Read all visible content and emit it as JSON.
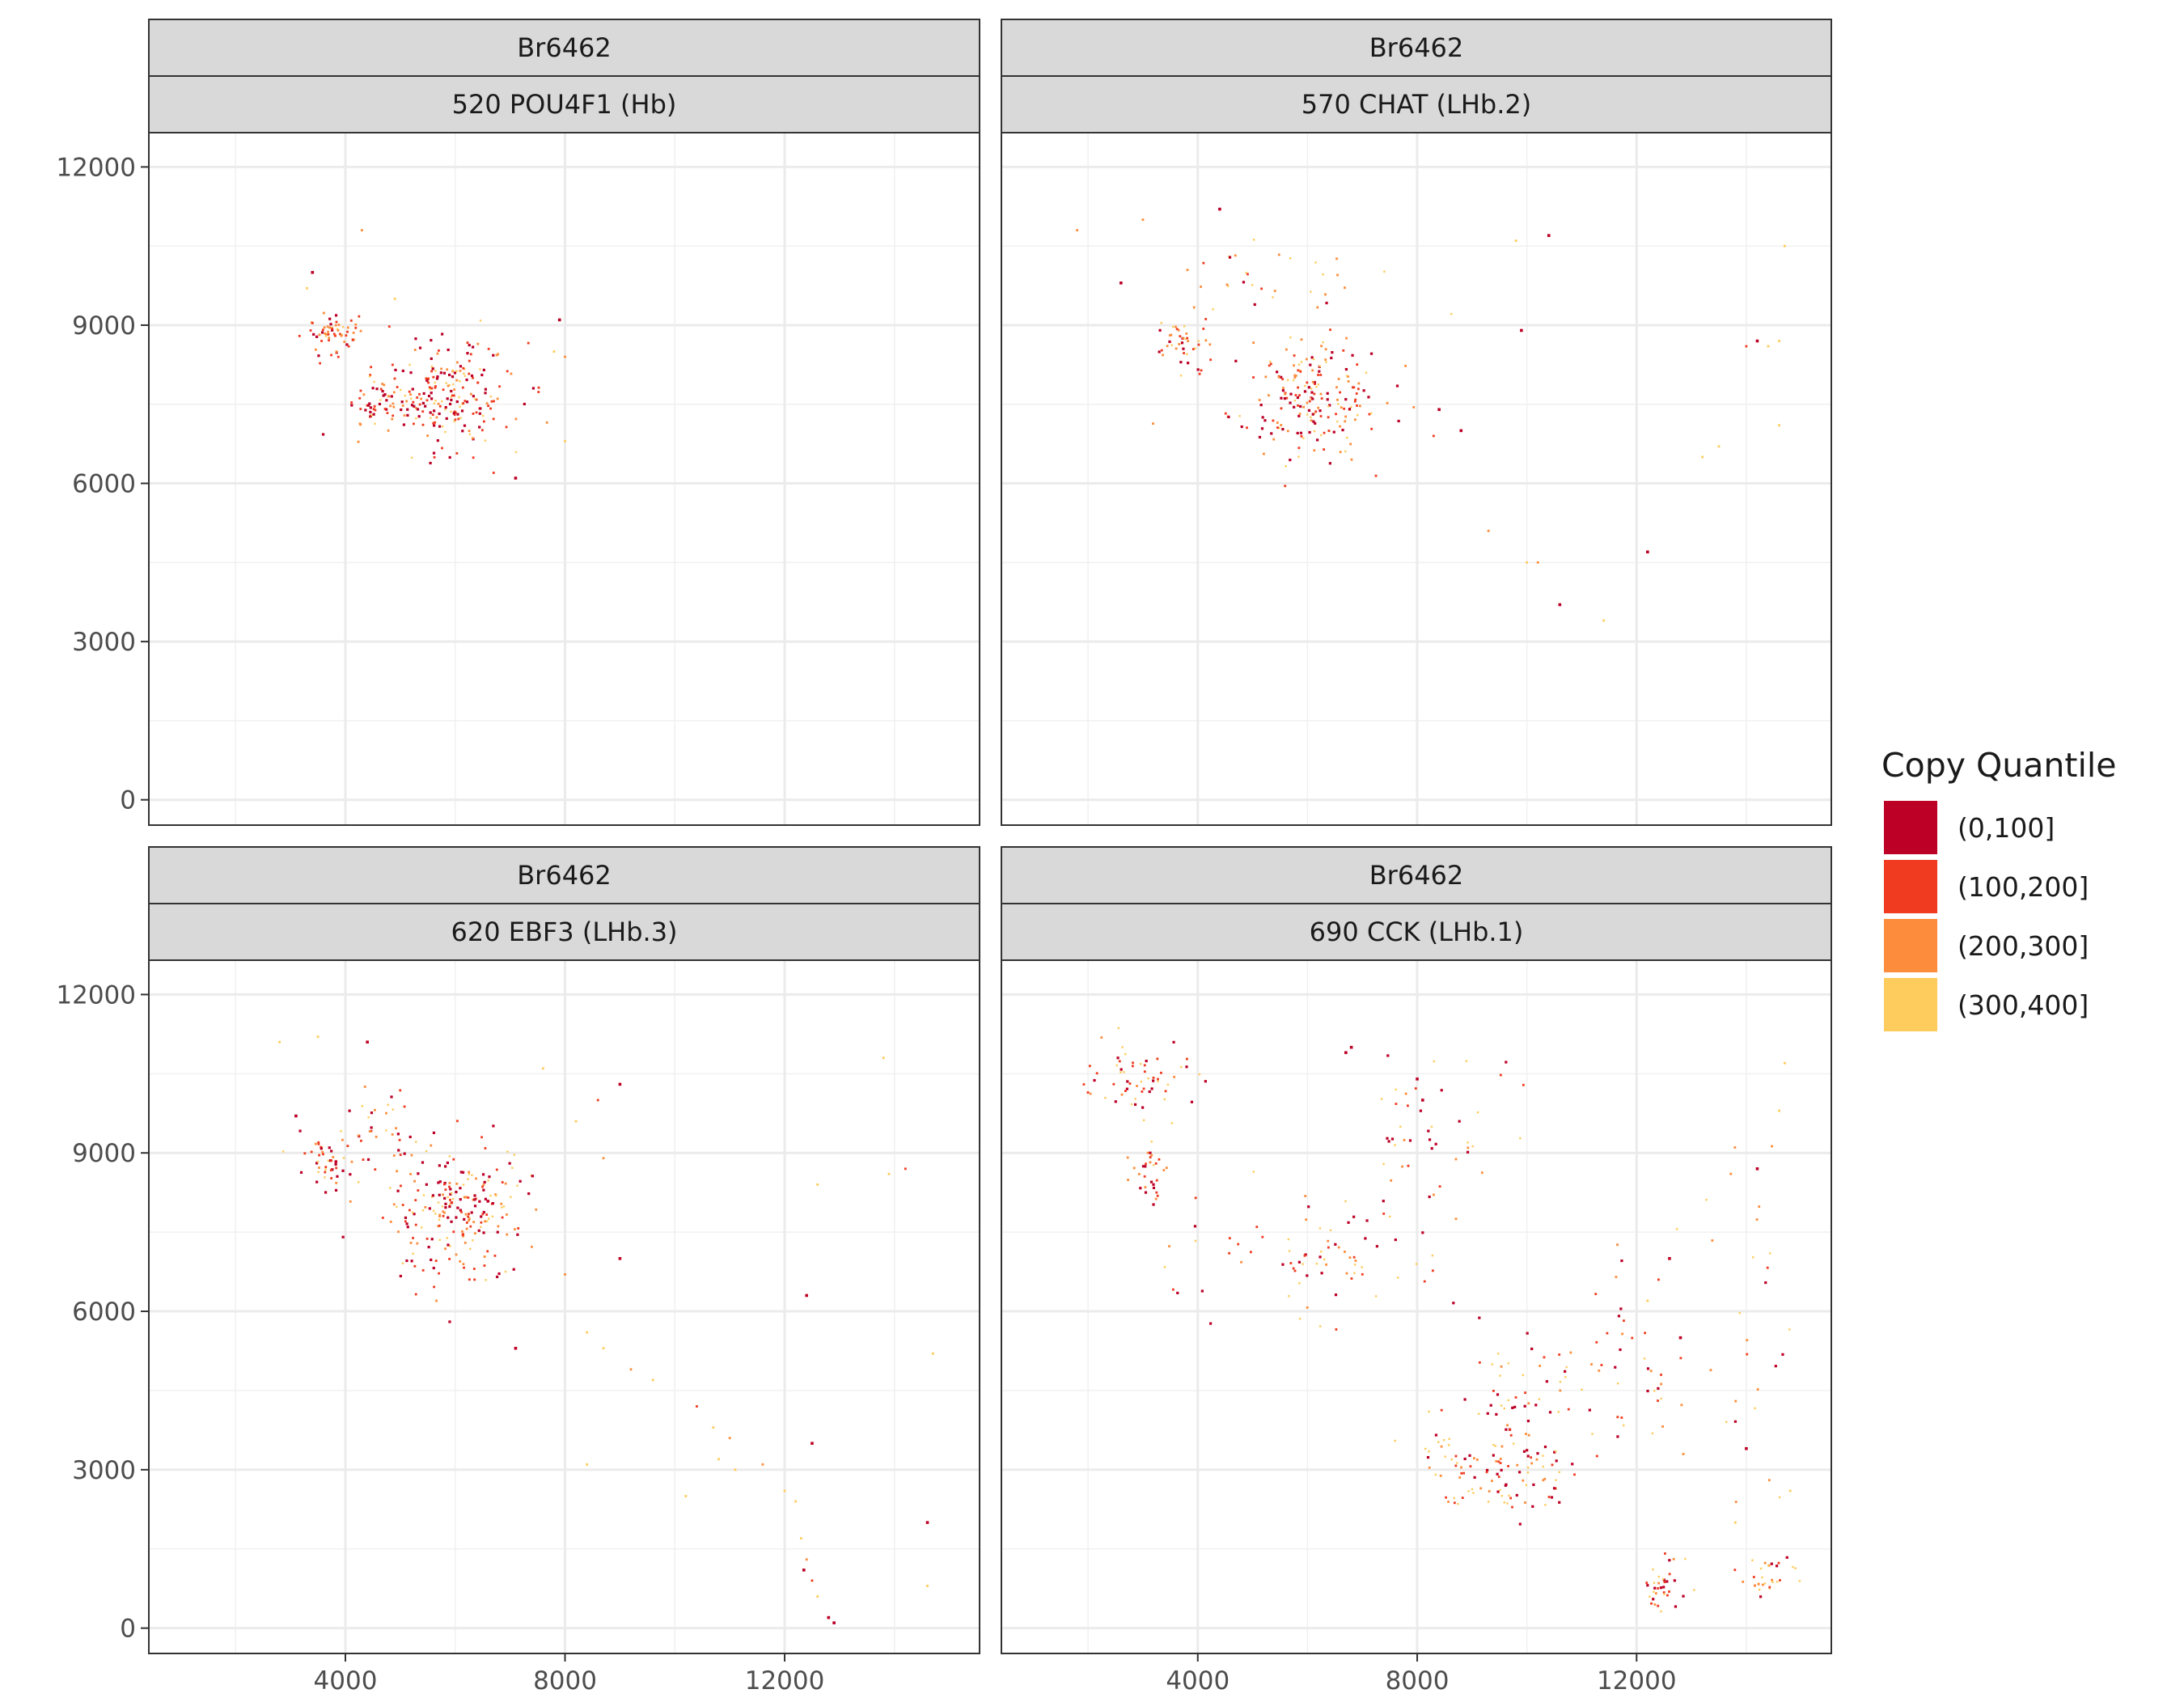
{
  "chart_data": {
    "type": "scatter",
    "xlim": [
      420,
      15550
    ],
    "ylim": [
      -480,
      12650
    ],
    "x_ticks": [
      "4000",
      "8000",
      "12000"
    ],
    "y_ticks": [
      "0",
      "3000",
      "6000",
      "9000",
      "12000"
    ],
    "major_grid_x": [
      4000,
      8000,
      12000
    ],
    "major_grid_y": [
      0,
      3000,
      6000,
      9000,
      12000
    ],
    "minor_grid_x": [
      2000,
      6000,
      10000,
      14000
    ],
    "minor_grid_y": [
      1500,
      4500,
      7500,
      10500
    ],
    "grid": true,
    "legend_position": "right",
    "legend": {
      "title": "Copy Quantile",
      "entries": [
        {
          "label": "(0,100]",
          "color": "#bd0026"
        },
        {
          "label": "(100,200]",
          "color": "#f03b20"
        },
        {
          "label": "(200,300]",
          "color": "#fd8d3c"
        },
        {
          "label": "(300,400]",
          "color": "#fecc5c"
        }
      ]
    },
    "panels": [
      {
        "sample": "Br6462",
        "cluster": "520 POU4F1 (Hb)",
        "clusters": [
          {
            "cx": 5800,
            "cy": 7700,
            "rx": 1300,
            "ry": 1000,
            "n": 230,
            "w": [
              3,
              3,
              2,
              2
            ]
          },
          {
            "cx": 3700,
            "cy": 8800,
            "rx": 500,
            "ry": 450,
            "n": 60,
            "w": [
              3,
              3,
              3,
              2
            ]
          },
          {
            "cx": 4500,
            "cy": 7500,
            "rx": 500,
            "ry": 500,
            "n": 40,
            "w": [
              3,
              3,
              2,
              1
            ]
          }
        ],
        "points": [
          [
            3300,
            9700,
            3
          ],
          [
            3400,
            10000,
            0
          ],
          [
            4300,
            10800,
            2
          ],
          [
            7900,
            9100,
            0
          ],
          [
            8000,
            8400,
            2
          ],
          [
            7800,
            8500,
            3
          ],
          [
            8000,
            6800,
            3
          ],
          [
            4900,
            9500,
            3
          ],
          [
            7100,
            6100,
            0
          ],
          [
            6700,
            6200,
            1
          ]
        ]
      },
      {
        "sample": "Br6462",
        "cluster": "570 CHAT (LHb.2)",
        "clusters": [
          {
            "cx": 6000,
            "cy": 7600,
            "rx": 1400,
            "ry": 1100,
            "n": 200,
            "w": [
              3,
              3,
              2,
              2
            ]
          },
          {
            "cx": 3700,
            "cy": 8700,
            "rx": 500,
            "ry": 450,
            "n": 40,
            "w": [
              2,
              3,
              3,
              2
            ]
          },
          {
            "cx": 5500,
            "cy": 9800,
            "rx": 3000,
            "ry": 800,
            "n": 35,
            "w": [
              1,
              1,
              2,
              4
            ]
          }
        ],
        "points": [
          [
            1800,
            10800,
            2
          ],
          [
            2600,
            9800,
            0
          ],
          [
            3000,
            11000,
            2
          ],
          [
            4400,
            11200,
            0
          ],
          [
            10400,
            10700,
            0
          ],
          [
            9800,
            10600,
            3
          ],
          [
            9900,
            8900,
            0
          ],
          [
            8400,
            7400,
            0
          ],
          [
            8800,
            7000,
            0
          ],
          [
            8300,
            6900,
            1
          ],
          [
            14200,
            8700,
            0
          ],
          [
            14400,
            8600,
            3
          ],
          [
            14000,
            8600,
            1
          ],
          [
            14600,
            8700,
            3
          ],
          [
            9300,
            5100,
            2
          ],
          [
            12200,
            4700,
            0
          ],
          [
            10000,
            4500,
            3
          ],
          [
            10200,
            4500,
            2
          ],
          [
            10600,
            3700,
            0
          ],
          [
            11400,
            3400,
            3
          ],
          [
            13500,
            6700,
            3
          ],
          [
            14600,
            7100,
            3
          ],
          [
            13200,
            6500,
            3
          ],
          [
            14700,
            10500,
            3
          ]
        ]
      },
      {
        "sample": "Br6462",
        "cluster": "620 EBF3 (LHb.3)",
        "clusters": [
          {
            "cx": 6000,
            "cy": 7900,
            "rx": 1300,
            "ry": 1300,
            "n": 230,
            "w": [
              3,
              3,
              2,
              2
            ]
          },
          {
            "cx": 3700,
            "cy": 8800,
            "rx": 500,
            "ry": 500,
            "n": 45,
            "w": [
              3,
              3,
              3,
              2
            ]
          },
          {
            "cx": 4600,
            "cy": 9400,
            "rx": 800,
            "ry": 900,
            "n": 30,
            "w": [
              2,
              2,
              2,
              3
            ]
          }
        ],
        "points": [
          [
            3100,
            9700,
            0
          ],
          [
            3500,
            11200,
            3
          ],
          [
            4400,
            11100,
            0
          ],
          [
            2800,
            11100,
            3
          ],
          [
            9000,
            10300,
            0
          ],
          [
            8600,
            10000,
            1
          ],
          [
            8200,
            9600,
            3
          ],
          [
            7600,
            10600,
            3
          ],
          [
            8700,
            8900,
            2
          ],
          [
            9000,
            7000,
            0
          ],
          [
            7100,
            5300,
            0
          ],
          [
            8000,
            6700,
            2
          ],
          [
            8400,
            5600,
            3
          ],
          [
            8700,
            5300,
            3
          ],
          [
            9200,
            4900,
            2
          ],
          [
            9600,
            4700,
            3
          ],
          [
            10400,
            4200,
            1
          ],
          [
            10700,
            3800,
            3
          ],
          [
            11000,
            3600,
            2
          ],
          [
            10800,
            3200,
            3
          ],
          [
            11100,
            3000,
            3
          ],
          [
            11600,
            3100,
            2
          ],
          [
            12000,
            2600,
            3
          ],
          [
            12200,
            2400,
            3
          ],
          [
            12400,
            6300,
            0
          ],
          [
            12500,
            3500,
            0
          ],
          [
            12300,
            1700,
            3
          ],
          [
            12400,
            1300,
            2
          ],
          [
            12350,
            1100,
            0
          ],
          [
            12500,
            900,
            1
          ],
          [
            12600,
            600,
            3
          ],
          [
            12800,
            200,
            0
          ],
          [
            12900,
            100,
            0
          ],
          [
            14200,
            8700,
            1
          ],
          [
            13900,
            8600,
            3
          ],
          [
            13800,
            10800,
            3
          ],
          [
            14600,
            2000,
            0
          ],
          [
            14700,
            5200,
            3
          ],
          [
            12600,
            8400,
            3
          ],
          [
            8400,
            3100,
            3
          ],
          [
            10200,
            2500,
            3
          ],
          [
            14600,
            800,
            3
          ]
        ]
      },
      {
        "sample": "Br6462",
        "cluster": "690 CCK (LHb.1)",
        "clusters": [
          {
            "cx": 2900,
            "cy": 10400,
            "rx": 1200,
            "ry": 700,
            "n": 60,
            "w": [
              3,
              3,
              2,
              3
            ]
          },
          {
            "cx": 3200,
            "cy": 8600,
            "rx": 400,
            "ry": 700,
            "n": 30,
            "w": [
              3,
              3,
              3,
              2
            ]
          },
          {
            "cx": 6300,
            "cy": 7200,
            "rx": 2200,
            "ry": 1200,
            "n": 80,
            "w": [
              3,
              3,
              3,
              3
            ]
          },
          {
            "cx": 9500,
            "cy": 2900,
            "rx": 1400,
            "ry": 700,
            "n": 100,
            "w": [
              3,
              3,
              3,
              3
            ]
          },
          {
            "cx": 9700,
            "cy": 4300,
            "rx": 1400,
            "ry": 1300,
            "n": 60,
            "w": [
              3,
              3,
              2,
              3
            ]
          },
          {
            "cx": 12500,
            "cy": 700,
            "rx": 350,
            "ry": 700,
            "n": 35,
            "w": [
              3,
              3,
              2,
              2
            ]
          },
          {
            "cx": 14300,
            "cy": 1000,
            "rx": 600,
            "ry": 500,
            "n": 30,
            "w": [
              2,
              2,
              2,
              3
            ]
          },
          {
            "cx": 8500,
            "cy": 9500,
            "rx": 1400,
            "ry": 1400,
            "n": 40,
            "w": [
              2,
              2,
              2,
              3
            ]
          },
          {
            "cx": 12000,
            "cy": 5000,
            "rx": 1500,
            "ry": 1800,
            "n": 40,
            "w": [
              2,
              2,
              2,
              3
            ]
          },
          {
            "cx": 14200,
            "cy": 5500,
            "rx": 700,
            "ry": 5000,
            "n": 25,
            "w": [
              1,
              1,
              2,
              3
            ]
          }
        ],
        "points": [
          [
            6800,
            11000,
            0
          ],
          [
            6700,
            10900,
            0
          ],
          [
            8000,
            10400,
            0
          ],
          [
            8100,
            10000,
            0
          ],
          [
            12600,
            7000,
            0
          ],
          [
            12400,
            6600,
            1
          ],
          [
            12800,
            5500,
            0
          ],
          [
            14200,
            8700,
            0
          ],
          [
            14600,
            9800,
            3
          ],
          [
            14700,
            10700,
            3
          ],
          [
            14000,
            3400,
            0
          ],
          [
            12200,
            6200,
            3
          ],
          [
            13800,
            2000,
            3
          ],
          [
            14800,
            2600,
            3
          ]
        ]
      }
    ]
  }
}
